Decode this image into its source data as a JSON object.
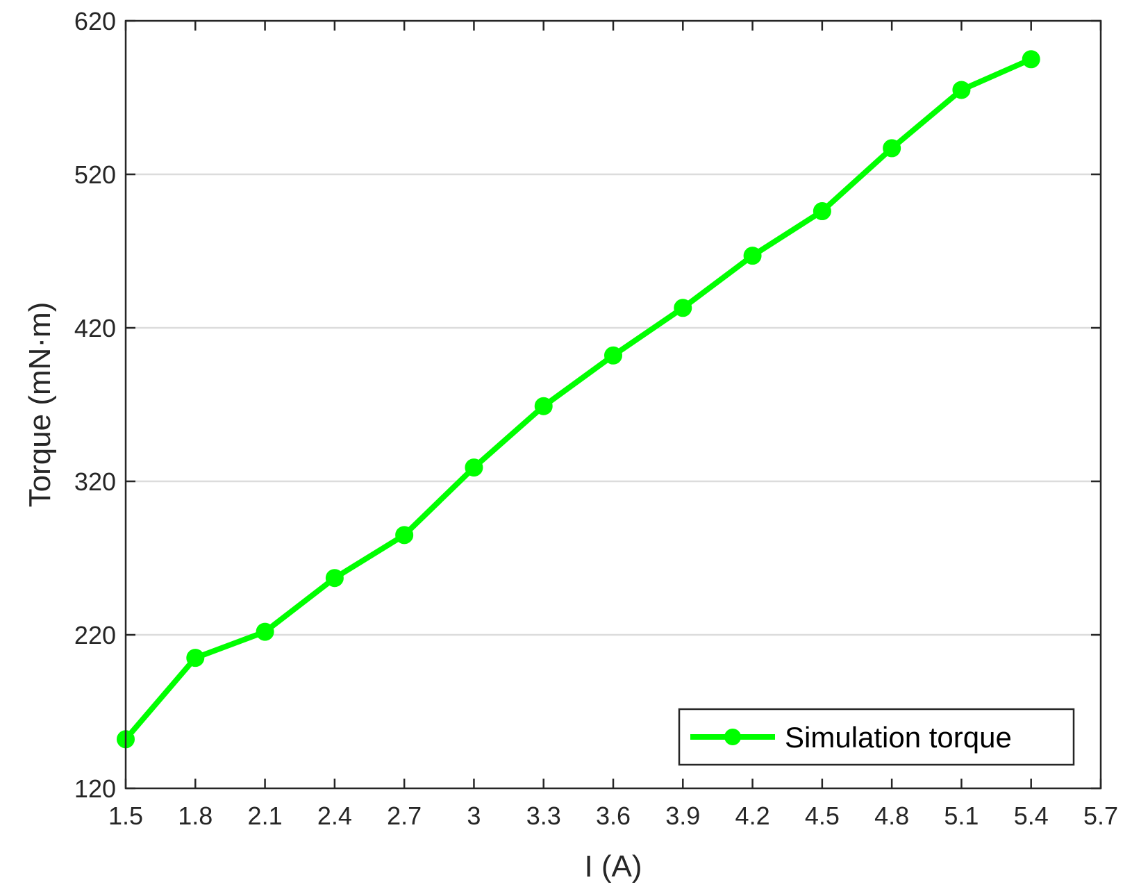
{
  "chart_data": {
    "type": "line",
    "xlabel": "I (A)",
    "ylabel": "Torque (mN·m)",
    "xlim": [
      1.5,
      5.7
    ],
    "ylim": [
      120,
      620
    ],
    "x_ticks": [
      1.5,
      1.8,
      2.1,
      2.4,
      2.7,
      3,
      3.3,
      3.6,
      3.9,
      4.2,
      4.5,
      4.8,
      5.1,
      5.4,
      5.7
    ],
    "x_tick_labels": [
      "1.5",
      "1.8",
      "2.1",
      "2.4",
      "2.7",
      "3",
      "3.3",
      "3.6",
      "3.9",
      "4.2",
      "4.5",
      "4.8",
      "5.1",
      "5.4",
      "5.7"
    ],
    "y_ticks": [
      120,
      220,
      320,
      420,
      520,
      620
    ],
    "y_tick_labels": [
      "120",
      "220",
      "320",
      "420",
      "520",
      "620"
    ],
    "grid": "horizontal",
    "legend_position": "bottom-right",
    "series": [
      {
        "name": "Simulation torque",
        "color": "#00ff00",
        "marker": "circle",
        "x": [
          1.5,
          1.8,
          2.1,
          2.4,
          2.7,
          3.0,
          3.3,
          3.6,
          3.9,
          4.2,
          4.5,
          4.8,
          5.1,
          5.4
        ],
        "y": [
          152,
          205,
          222,
          257,
          285,
          329,
          369,
          402,
          433,
          467,
          496,
          537,
          575,
          595
        ]
      }
    ]
  }
}
